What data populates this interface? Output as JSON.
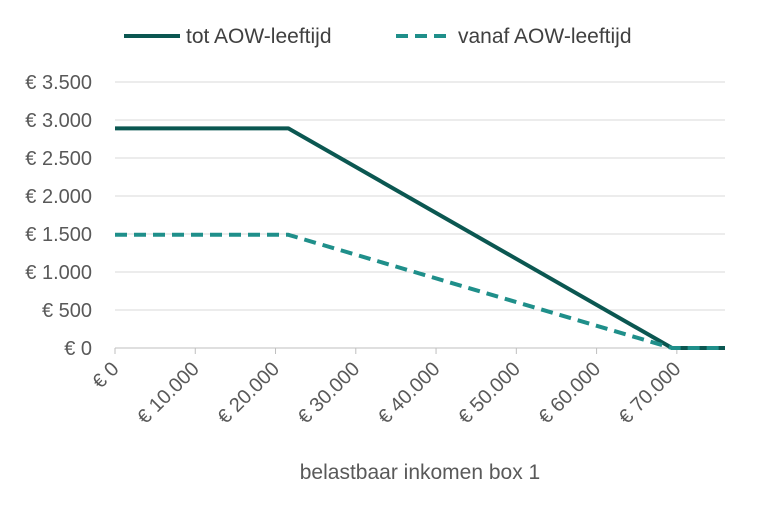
{
  "chart_data": {
    "type": "line",
    "xlabel": "belastbaar inkomen box 1",
    "ylabel": "",
    "title": "",
    "xlim": [
      0,
      76000
    ],
    "ylim": [
      0,
      3500
    ],
    "x_ticks": [
      0,
      10000,
      20000,
      30000,
      40000,
      50000,
      60000,
      70000
    ],
    "x_tick_labels": [
      "€ 0",
      "€ 10.000",
      "€ 20.000",
      "€ 30.000",
      "€ 40.000",
      "€ 50.000",
      "€ 60.000",
      "€ 70.000"
    ],
    "y_ticks": [
      0,
      500,
      1000,
      1500,
      2000,
      2500,
      3000,
      3500
    ],
    "y_tick_labels": [
      "€ 0",
      "€ 500",
      "€ 1.000",
      "€ 1.500",
      "€ 2.000",
      "€ 2.500",
      "€ 3.000",
      "€ 3.500"
    ],
    "grid": true,
    "legend_position": "top",
    "series": [
      {
        "name": "tot AOW-leeftijd",
        "color": "#0b5751",
        "style": "solid",
        "points": [
          [
            0,
            2890
          ],
          [
            21600,
            2890
          ],
          [
            69400,
            0
          ],
          [
            76000,
            0
          ]
        ]
      },
      {
        "name": "vanaf AOW-leeftijd",
        "color": "#1f8f8a",
        "style": "dashed",
        "points": [
          [
            0,
            1490
          ],
          [
            21600,
            1490
          ],
          [
            69400,
            0
          ],
          [
            76000,
            0
          ]
        ]
      }
    ]
  }
}
